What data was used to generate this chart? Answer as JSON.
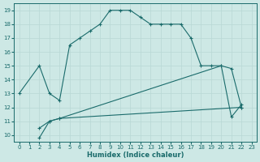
{
  "xlabel": "Humidex (Indice chaleur)",
  "background_color": "#cde8e5",
  "line_color": "#1a6b6b",
  "grid_color": "#b8d8d5",
  "xlim": [
    -0.5,
    23.5
  ],
  "ylim": [
    9.5,
    19.5
  ],
  "xticks": [
    0,
    1,
    2,
    3,
    4,
    5,
    6,
    7,
    8,
    9,
    10,
    11,
    12,
    13,
    14,
    15,
    16,
    17,
    18,
    19,
    20,
    21,
    22,
    23
  ],
  "yticks": [
    10,
    11,
    12,
    13,
    14,
    15,
    16,
    17,
    18,
    19
  ],
  "curve1_x": [
    0,
    2,
    3,
    4,
    5,
    6,
    7,
    8,
    9,
    10,
    11,
    12,
    13,
    14,
    15,
    16,
    17,
    18,
    19,
    20,
    21,
    22
  ],
  "curve1_y": [
    13,
    15,
    13,
    12.5,
    16.5,
    17,
    17.5,
    18,
    19,
    19,
    19,
    18.5,
    18,
    18,
    18,
    18,
    17,
    15,
    15,
    15,
    14.8,
    12
  ],
  "curve2_x": [
    2,
    3,
    4,
    22
  ],
  "curve2_y": [
    10.5,
    11,
    11.2,
    12
  ],
  "curve3_x": [
    2,
    3,
    4,
    20,
    21,
    22
  ],
  "curve3_y": [
    9.8,
    11,
    11.2,
    15,
    11.3,
    12.2
  ]
}
